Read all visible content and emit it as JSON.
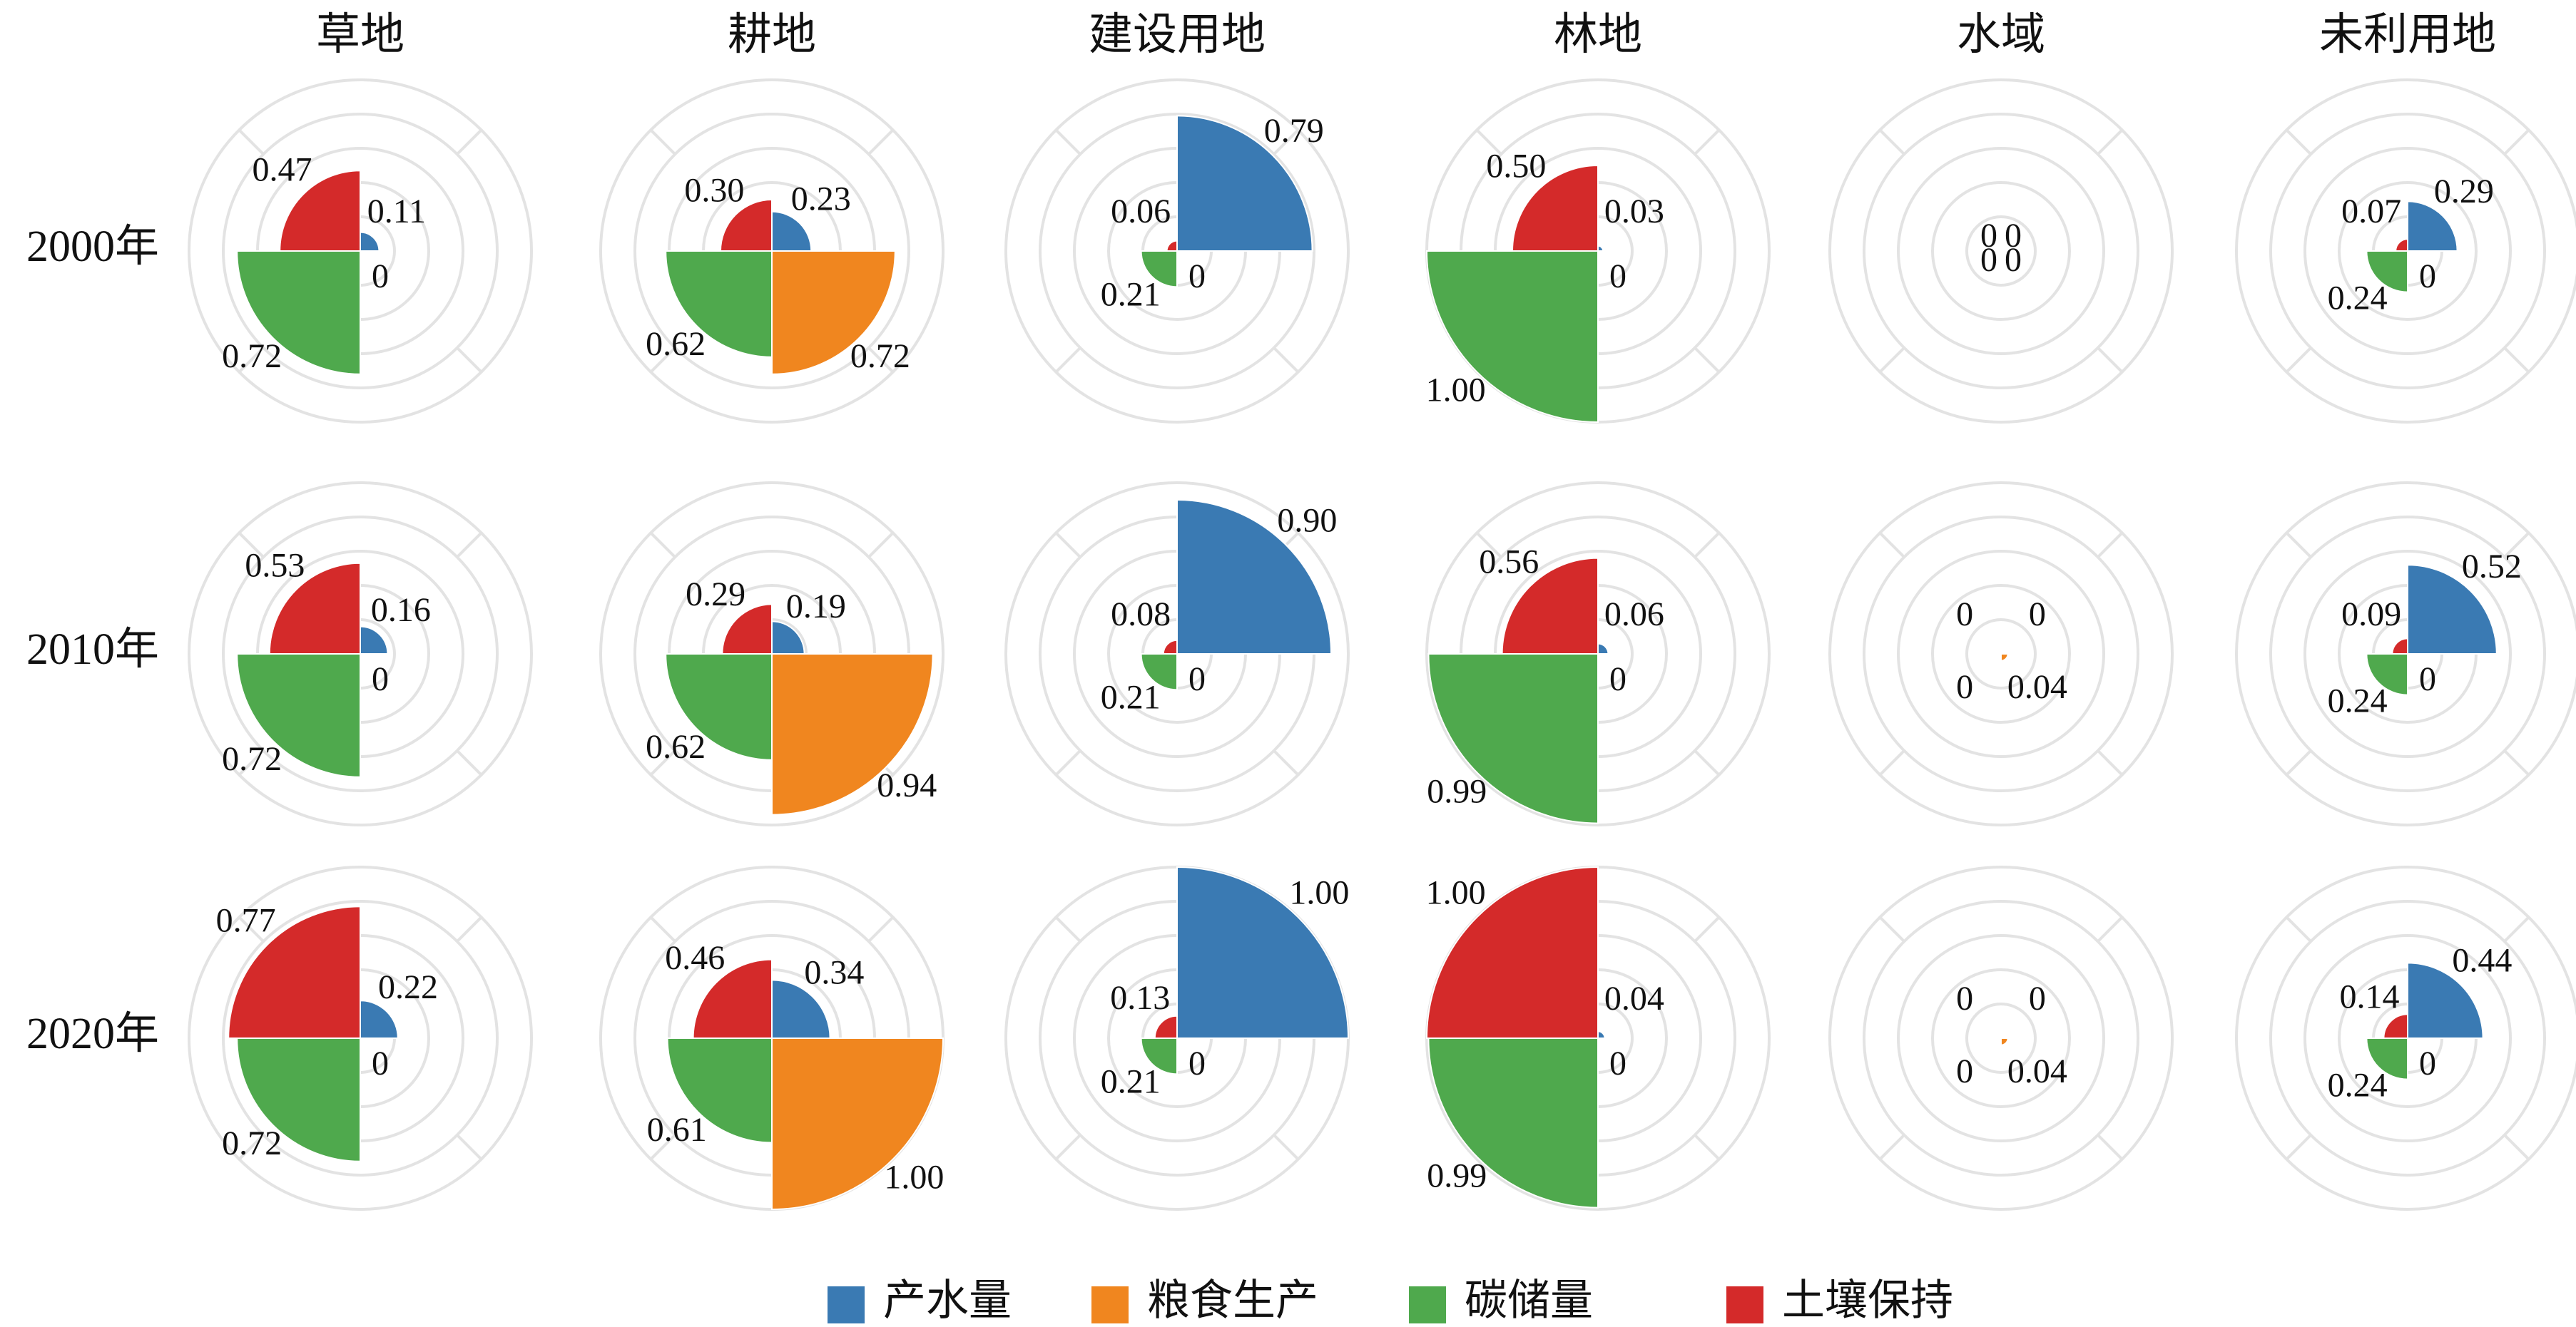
{
  "chart_data": {
    "type": "polar-bar",
    "grid": true,
    "radial_range": [
      0,
      1
    ],
    "grid_rings": [
      0.2,
      0.4,
      0.6,
      0.8,
      1.0
    ],
    "legend_position": "bottom-center",
    "columns": [
      "草地",
      "耕地",
      "建设用地",
      "林地",
      "水域",
      "未利用地"
    ],
    "rows": [
      "2000年",
      "2010年",
      "2020年"
    ],
    "series": [
      {
        "name": "产水量",
        "color": "#3a7ab3"
      },
      {
        "name": "粮食生产",
        "color": "#f0861f"
      },
      {
        "name": "碳储量",
        "color": "#4fa94d"
      },
      {
        "name": "土壤保持",
        "color": "#d42a2a"
      }
    ],
    "values": [
      [
        {
          "产水量": 0.11,
          "粮食生产": 0,
          "碳储量": 0.72,
          "土壤保持": 0.47,
          "labels": [
            "0.11",
            "",
            "0.72",
            "0.47"
          ],
          "zero_label": "0"
        },
        {
          "产水量": 0.23,
          "粮食生产": 0.72,
          "碳储量": 0.62,
          "土壤保持": 0.3,
          "labels": [
            "0.23",
            "0.72",
            "0.62",
            "0.30"
          ]
        },
        {
          "产水量": 0.79,
          "粮食生产": 0,
          "碳储量": 0.21,
          "土壤保持": 0.06,
          "labels": [
            "0.79",
            "",
            "0.21",
            "0.06"
          ],
          "zero_label": "0"
        },
        {
          "产水量": 0.03,
          "粮食生产": 0,
          "碳储量": 1.0,
          "土壤保持": 0.5,
          "labels": [
            "0.03",
            "",
            "1.00",
            "0.50"
          ],
          "zero_label": "0"
        },
        {
          "产水量": 0,
          "粮食生产": 0,
          "碳储量": 0,
          "土壤保持": 0,
          "labels": [
            "0",
            "0",
            "0",
            "0"
          ]
        },
        {
          "产水量": 0.29,
          "粮食生产": 0,
          "碳储量": 0.24,
          "土壤保持": 0.07,
          "labels": [
            "0.29",
            "",
            "0.24",
            "0.07"
          ],
          "zero_label": "0"
        }
      ],
      [
        {
          "产水量": 0.16,
          "粮食生产": 0,
          "碳储量": 0.72,
          "土壤保持": 0.53,
          "labels": [
            "0.16",
            "",
            "0.72",
            "0.53"
          ],
          "zero_label": "0"
        },
        {
          "产水量": 0.19,
          "粮食生产": 0.94,
          "碳储量": 0.62,
          "土壤保持": 0.29,
          "labels": [
            "0.19",
            "0.94",
            "0.62",
            "0.29"
          ]
        },
        {
          "产水量": 0.9,
          "粮食生产": 0,
          "碳储量": 0.21,
          "土壤保持": 0.08,
          "labels": [
            "0.90",
            "",
            "0.21",
            "0.08"
          ],
          "zero_label": "0"
        },
        {
          "产水量": 0.06,
          "粮食生产": 0,
          "碳储量": 0.99,
          "土壤保持": 0.56,
          "labels": [
            "0.06",
            "",
            "0.99",
            "0.56"
          ],
          "zero_label": "0"
        },
        {
          "产水量": 0,
          "粮食生产": 0.04,
          "碳储量": 0,
          "土壤保持": 0,
          "labels": [
            "0",
            "0.04",
            "0",
            "0"
          ]
        },
        {
          "产水量": 0.52,
          "粮食生产": 0,
          "碳储量": 0.24,
          "土壤保持": 0.09,
          "labels": [
            "0.52",
            "",
            "0.24",
            "0.09"
          ],
          "zero_label": "0"
        }
      ],
      [
        {
          "产水量": 0.22,
          "粮食生产": 0,
          "碳储量": 0.72,
          "土壤保持": 0.77,
          "labels": [
            "0.22",
            "",
            "0.72",
            "0.77"
          ],
          "zero_label": "0"
        },
        {
          "产水量": 0.34,
          "粮食生产": 1.0,
          "碳储量": 0.61,
          "土壤保持": 0.46,
          "labels": [
            "0.34",
            "1.00",
            "0.61",
            "0.46"
          ]
        },
        {
          "产水量": 1.0,
          "粮食生产": 0,
          "碳储量": 0.21,
          "土壤保持": 0.13,
          "labels": [
            "1.00",
            "",
            "0.21",
            "0.13"
          ],
          "zero_label": "0"
        },
        {
          "产水量": 0.04,
          "粮食生产": 0,
          "碳储量": 0.99,
          "土壤保持": 1.0,
          "labels": [
            "0.04",
            "",
            "0.99",
            "1.00"
          ],
          "zero_label": "0"
        },
        {
          "产水量": 0,
          "粮食生产": 0.04,
          "碳储量": 0,
          "土壤保持": 0,
          "labels": [
            "0",
            "0.04",
            "0",
            "0"
          ]
        },
        {
          "产水量": 0.44,
          "粮食生产": 0,
          "碳储量": 0.24,
          "土壤保持": 0.14,
          "labels": [
            "0.44",
            "",
            "0.24",
            "0.14"
          ],
          "zero_label": "0"
        }
      ]
    ]
  }
}
